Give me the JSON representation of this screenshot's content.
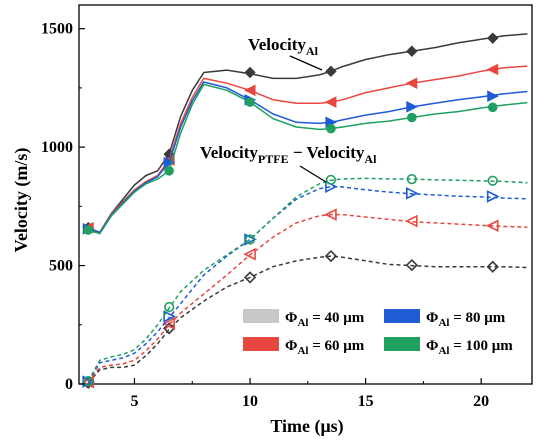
{
  "chart_data": {
    "type": "line",
    "xlabel": "Time (μs)",
    "ylabel": "Velocity (m/s)",
    "xlim": [
      2.6,
      22.2
    ],
    "ylim": [
      0,
      1600
    ],
    "xticks": [
      5,
      10,
      15,
      20
    ],
    "yticks": [
      0,
      500,
      1000,
      1500
    ],
    "xtick_labels": [
      "5",
      "10",
      "15",
      "20"
    ],
    "ytick_labels": [
      "0",
      "500",
      "1000",
      "1500"
    ],
    "annotations": {
      "velocity_al": {
        "main": "Velocity",
        "sub": "Al"
      },
      "velocity_diff": {
        "part1": "Velocity",
        "sub1": "PTFE",
        "minus": " − ",
        "part2": "Velocity",
        "sub2": "Al"
      }
    },
    "legend": {
      "placement": "bottom-right",
      "entries": [
        {
          "symbol": "Φ",
          "sub": "Al",
          "label": " = 40 μm",
          "color": "#c8c8c8"
        },
        {
          "symbol": "Φ",
          "sub": "Al",
          "label": " = 80 μm",
          "color": "#1f5bd6"
        },
        {
          "symbol": "Φ",
          "sub": "Al",
          "label": " = 60 μm",
          "color": "#e8473f"
        },
        {
          "symbol": "Φ",
          "sub": "Al",
          "label": " = 100 μm",
          "color": "#1fa060"
        }
      ]
    },
    "series": [
      {
        "group": "Velocity_Al",
        "color": "#3a3a3a",
        "marker": "diamond",
        "dashed": false,
        "filled": true,
        "x": [
          3,
          3.5,
          4,
          4.5,
          5,
          5.5,
          6,
          6.5,
          7,
          7.5,
          8,
          9,
          10,
          11,
          12,
          13,
          13.5,
          14,
          15,
          16,
          17,
          18,
          19,
          20,
          21,
          22
        ],
        "y": [
          660,
          640,
          720,
          780,
          840,
          880,
          900,
          970,
          1130,
          1240,
          1315,
          1325,
          1310,
          1290,
          1290,
          1305,
          1320,
          1340,
          1370,
          1390,
          1405,
          1420,
          1440,
          1455,
          1470,
          1478
        ],
        "marker_x": [
          3,
          6.5,
          10,
          13.5,
          17,
          20.5
        ],
        "marker_y": [
          660,
          970,
          1315,
          1320,
          1405,
          1460
        ]
      },
      {
        "group": "Velocity_Al",
        "color": "#e8473f",
        "marker": "triangle-left",
        "dashed": false,
        "filled": true,
        "x": [
          3,
          3.5,
          4,
          4.5,
          5,
          5.5,
          6,
          6.5,
          7,
          7.5,
          8,
          9,
          10,
          11,
          12,
          13,
          13.5,
          14,
          15,
          16,
          17,
          18,
          19,
          20,
          21,
          22
        ],
        "y": [
          660,
          640,
          720,
          770,
          820,
          855,
          880,
          945,
          1100,
          1210,
          1290,
          1270,
          1240,
          1200,
          1185,
          1185,
          1190,
          1200,
          1230,
          1250,
          1270,
          1285,
          1300,
          1320,
          1335,
          1342
        ],
        "marker_x": [
          3,
          6.5,
          10,
          13.5,
          17,
          20.5
        ],
        "marker_y": [
          660,
          945,
          1240,
          1190,
          1270,
          1328
        ]
      },
      {
        "group": "Velocity_Al",
        "color": "#1f5bd6",
        "marker": "triangle-right",
        "dashed": false,
        "filled": true,
        "x": [
          3,
          3.5,
          4,
          4.5,
          5,
          5.5,
          6,
          6.5,
          7,
          7.5,
          8,
          9,
          10,
          11,
          12,
          13,
          13.5,
          14,
          15,
          16,
          17,
          18,
          19,
          20,
          21,
          22
        ],
        "y": [
          655,
          640,
          715,
          765,
          815,
          850,
          875,
          935,
          1085,
          1195,
          1275,
          1250,
          1200,
          1140,
          1105,
          1100,
          1105,
          1115,
          1135,
          1150,
          1170,
          1185,
          1200,
          1212,
          1225,
          1235
        ],
        "marker_x": [
          3,
          6.5,
          10,
          13.5,
          17,
          20.5
        ],
        "marker_y": [
          655,
          935,
          1200,
          1105,
          1170,
          1215
        ]
      },
      {
        "group": "Velocity_Al",
        "color": "#1fa060",
        "marker": "circle",
        "dashed": false,
        "filled": true,
        "x": [
          3,
          3.5,
          4,
          4.5,
          5,
          5.5,
          6,
          6.5,
          7,
          7.5,
          8,
          9,
          10,
          11,
          12,
          13,
          13.5,
          14,
          15,
          16,
          17,
          18,
          19,
          20,
          21,
          22
        ],
        "y": [
          650,
          635,
          710,
          760,
          810,
          845,
          865,
          900,
          1060,
          1180,
          1265,
          1240,
          1190,
          1120,
          1085,
          1075,
          1078,
          1085,
          1100,
          1110,
          1125,
          1140,
          1150,
          1165,
          1178,
          1188
        ],
        "marker_x": [
          3,
          6.5,
          10,
          13.5,
          17,
          20.5
        ],
        "marker_y": [
          650,
          900,
          1190,
          1078,
          1125,
          1168
        ]
      },
      {
        "group": "Velocity_diff",
        "color": "#3a3a3a",
        "marker": "diamond",
        "dashed": true,
        "filled": false,
        "x": [
          3,
          3.5,
          4,
          4.5,
          5,
          5.5,
          6,
          6.5,
          7,
          8,
          9,
          10,
          11,
          12,
          13,
          13.5,
          14,
          15,
          16,
          17,
          18,
          19,
          20,
          21,
          22
        ],
        "y": [
          5,
          60,
          70,
          70,
          80,
          120,
          170,
          230,
          280,
          350,
          410,
          450,
          495,
          520,
          535,
          540,
          535,
          520,
          505,
          500,
          495,
          495,
          495,
          495,
          492
        ],
        "marker_x": [
          3,
          6.5,
          10,
          13.5,
          17,
          20.5
        ],
        "marker_y": [
          5,
          235,
          450,
          540,
          502,
          495
        ]
      },
      {
        "group": "Velocity_diff",
        "color": "#e8473f",
        "marker": "triangle-left",
        "dashed": true,
        "filled": false,
        "x": [
          3,
          3.5,
          4,
          4.5,
          5,
          5.5,
          6,
          6.5,
          7,
          8,
          9,
          10,
          11,
          12,
          13,
          13.5,
          14,
          15,
          16,
          17,
          18,
          19,
          20,
          21,
          22
        ],
        "y": [
          8,
          70,
          80,
          85,
          100,
          140,
          190,
          250,
          300,
          380,
          460,
          545,
          620,
          680,
          710,
          715,
          715,
          705,
          695,
          685,
          680,
          675,
          670,
          665,
          662
        ],
        "marker_x": [
          3,
          6.5,
          10,
          13.5,
          17,
          20.5
        ],
        "marker_y": [
          8,
          255,
          548,
          715,
          688,
          668
        ]
      },
      {
        "group": "Velocity_diff",
        "color": "#1f5bd6",
        "marker": "triangle-right",
        "dashed": true,
        "filled": false,
        "x": [
          3,
          3.5,
          4,
          4.5,
          5,
          5.5,
          6,
          6.5,
          7,
          8,
          9,
          10,
          11,
          12,
          13,
          13.5,
          14,
          15,
          16,
          17,
          18,
          19,
          20,
          21,
          22
        ],
        "y": [
          10,
          90,
          100,
          110,
          130,
          170,
          220,
          280,
          340,
          460,
          540,
          610,
          700,
          780,
          825,
          833,
          832,
          820,
          810,
          803,
          798,
          793,
          790,
          785,
          782
        ],
        "marker_x": [
          3,
          6.5,
          10,
          13.5,
          17,
          20.5
        ],
        "marker_y": [
          10,
          285,
          610,
          833,
          805,
          792
        ]
      },
      {
        "group": "Velocity_diff",
        "color": "#1fa060",
        "marker": "circle",
        "dashed": true,
        "filled": false,
        "x": [
          3,
          3.5,
          4,
          4.5,
          5,
          5.5,
          6,
          6.5,
          7,
          8,
          9,
          10,
          11,
          12,
          13,
          13.5,
          14,
          15,
          16,
          17,
          18,
          19,
          20,
          21,
          22
        ],
        "y": [
          12,
          100,
          115,
          125,
          145,
          190,
          250,
          320,
          390,
          480,
          545,
          610,
          700,
          790,
          845,
          860,
          866,
          868,
          866,
          865,
          862,
          860,
          858,
          855,
          850
        ],
        "marker_x": [
          3,
          6.5,
          10,
          13.5,
          17,
          20.5
        ],
        "marker_y": [
          12,
          325,
          610,
          862,
          865,
          858
        ]
      }
    ]
  }
}
